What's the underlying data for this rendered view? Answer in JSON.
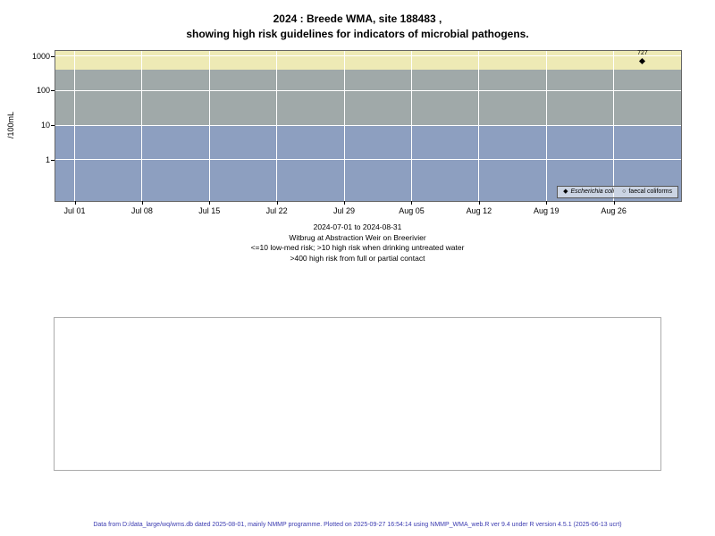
{
  "chart_data": {
    "type": "scatter",
    "title_lines": [
      "2024 : Breede WMA, site 188483 ,",
      "showing high risk guidelines for indicators of microbial pathogens."
    ],
    "ylabel": "/100mL",
    "y_scale": "log10",
    "y_ticks": [
      1,
      10,
      100,
      1000
    ],
    "y_log_range": [
      -1.2,
      3.15
    ],
    "x_tick_labels": [
      "Jul 01",
      "Jul 08",
      "Jul 15",
      "Jul 22",
      "Jul 29",
      "Aug 05",
      "Aug 12",
      "Aug 19",
      "Aug 26"
    ],
    "x_tick_days": [
      0,
      7,
      14,
      21,
      28,
      35,
      42,
      49,
      56
    ],
    "x_day_range": [
      -2,
      63
    ],
    "grid": true,
    "grid_color": "#ffffff",
    "bands": [
      {
        "id": "low-med-risk",
        "label": "<=10 low-med risk",
        "from": 0.05,
        "to": 10,
        "color": "#8d9fc0"
      },
      {
        "id": "high-risk-drinking",
        "label": ">10 high risk when drinking untreated water",
        "from": 10,
        "to": 400,
        "color": "#a0a9a9"
      },
      {
        "id": "high-risk-contact",
        "label": ">400 high risk from full or partial contact",
        "from": 400,
        "to": 1500,
        "color": "#eeeab5"
      }
    ],
    "series": [
      {
        "name": "Escherichia coli",
        "marker": "filled-diamond",
        "points": [
          {
            "x_day": 59,
            "value": 727,
            "label": "727"
          }
        ]
      },
      {
        "name": "faecal coliforms",
        "marker": "open-circle",
        "points": []
      }
    ],
    "subtitle_lines": [
      "2024-07-01 to 2024-08-31",
      "Witbrug at Abstraction Weir on Breerivier",
      "<=10 low-med risk; >10 high risk when drinking untreated water",
      ">400 high risk from full or partial contact"
    ],
    "legend_position": "bottom-right"
  },
  "legend": {
    "items": [
      {
        "marker": "◆",
        "label": "Escherichia coli",
        "italic": true
      },
      {
        "marker": "○",
        "label": "faecal coliforms",
        "italic": false
      }
    ]
  },
  "footer": "Data from D:/data_large/wq/wms.db dated 2025-08-01, mainly NMMP programme. Plotted on 2025-09-27 16:54:14 using NMMP_WMA_web.R ver 9.4 under R version 4.5.1 (2025-06-13 ucrt)"
}
